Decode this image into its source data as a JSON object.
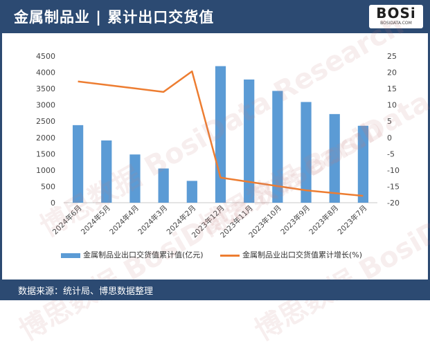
{
  "header": {
    "title": "金属制品业 | 累计出口交货值",
    "logo_text": "BOSi",
    "logo_sub": "BOSIDATA.COM"
  },
  "footer": {
    "source": "数据来源：统计局、博思数据整理"
  },
  "colors": {
    "bar": "#5b9bd5",
    "line": "#ed7d31",
    "header": "#2c4a72"
  },
  "chart_data": {
    "type": "bar",
    "categories": [
      "2024年6月",
      "2024年5月",
      "2024年4月",
      "2024年3月",
      "2024年2月",
      "2023年12月",
      "2023年11月",
      "2023年10月",
      "2023年9月",
      "2023年8月",
      "2023年7月"
    ],
    "series": [
      {
        "name": "金属制品业出口交货值累计值(亿元)",
        "type": "bar",
        "axis": "left",
        "values": [
          2380,
          1910,
          1480,
          1050,
          670,
          4190,
          3780,
          3430,
          3090,
          2720,
          2360
        ]
      },
      {
        "name": "金属制品业出口交货值累计增长(%)",
        "type": "line",
        "axis": "right",
        "values": [
          17.2,
          null,
          null,
          14.0,
          20.3,
          -12.3,
          null,
          null,
          -16.2,
          null,
          -17.9
        ]
      }
    ],
    "y_left": {
      "min": 0,
      "max": 4500,
      "ticks": [
        "0",
        "500",
        "1000",
        "1500",
        "2000",
        "2500",
        "3000",
        "3500",
        "4000",
        "4500"
      ]
    },
    "y_right": {
      "min": -20,
      "max": 25,
      "ticks": [
        "-20",
        "-15",
        "-10",
        "-5",
        "0",
        "5",
        "10",
        "15",
        "20",
        "25"
      ]
    },
    "grid": false,
    "legend_position": "bottom"
  },
  "watermark": "博思数据 BosiData Research"
}
